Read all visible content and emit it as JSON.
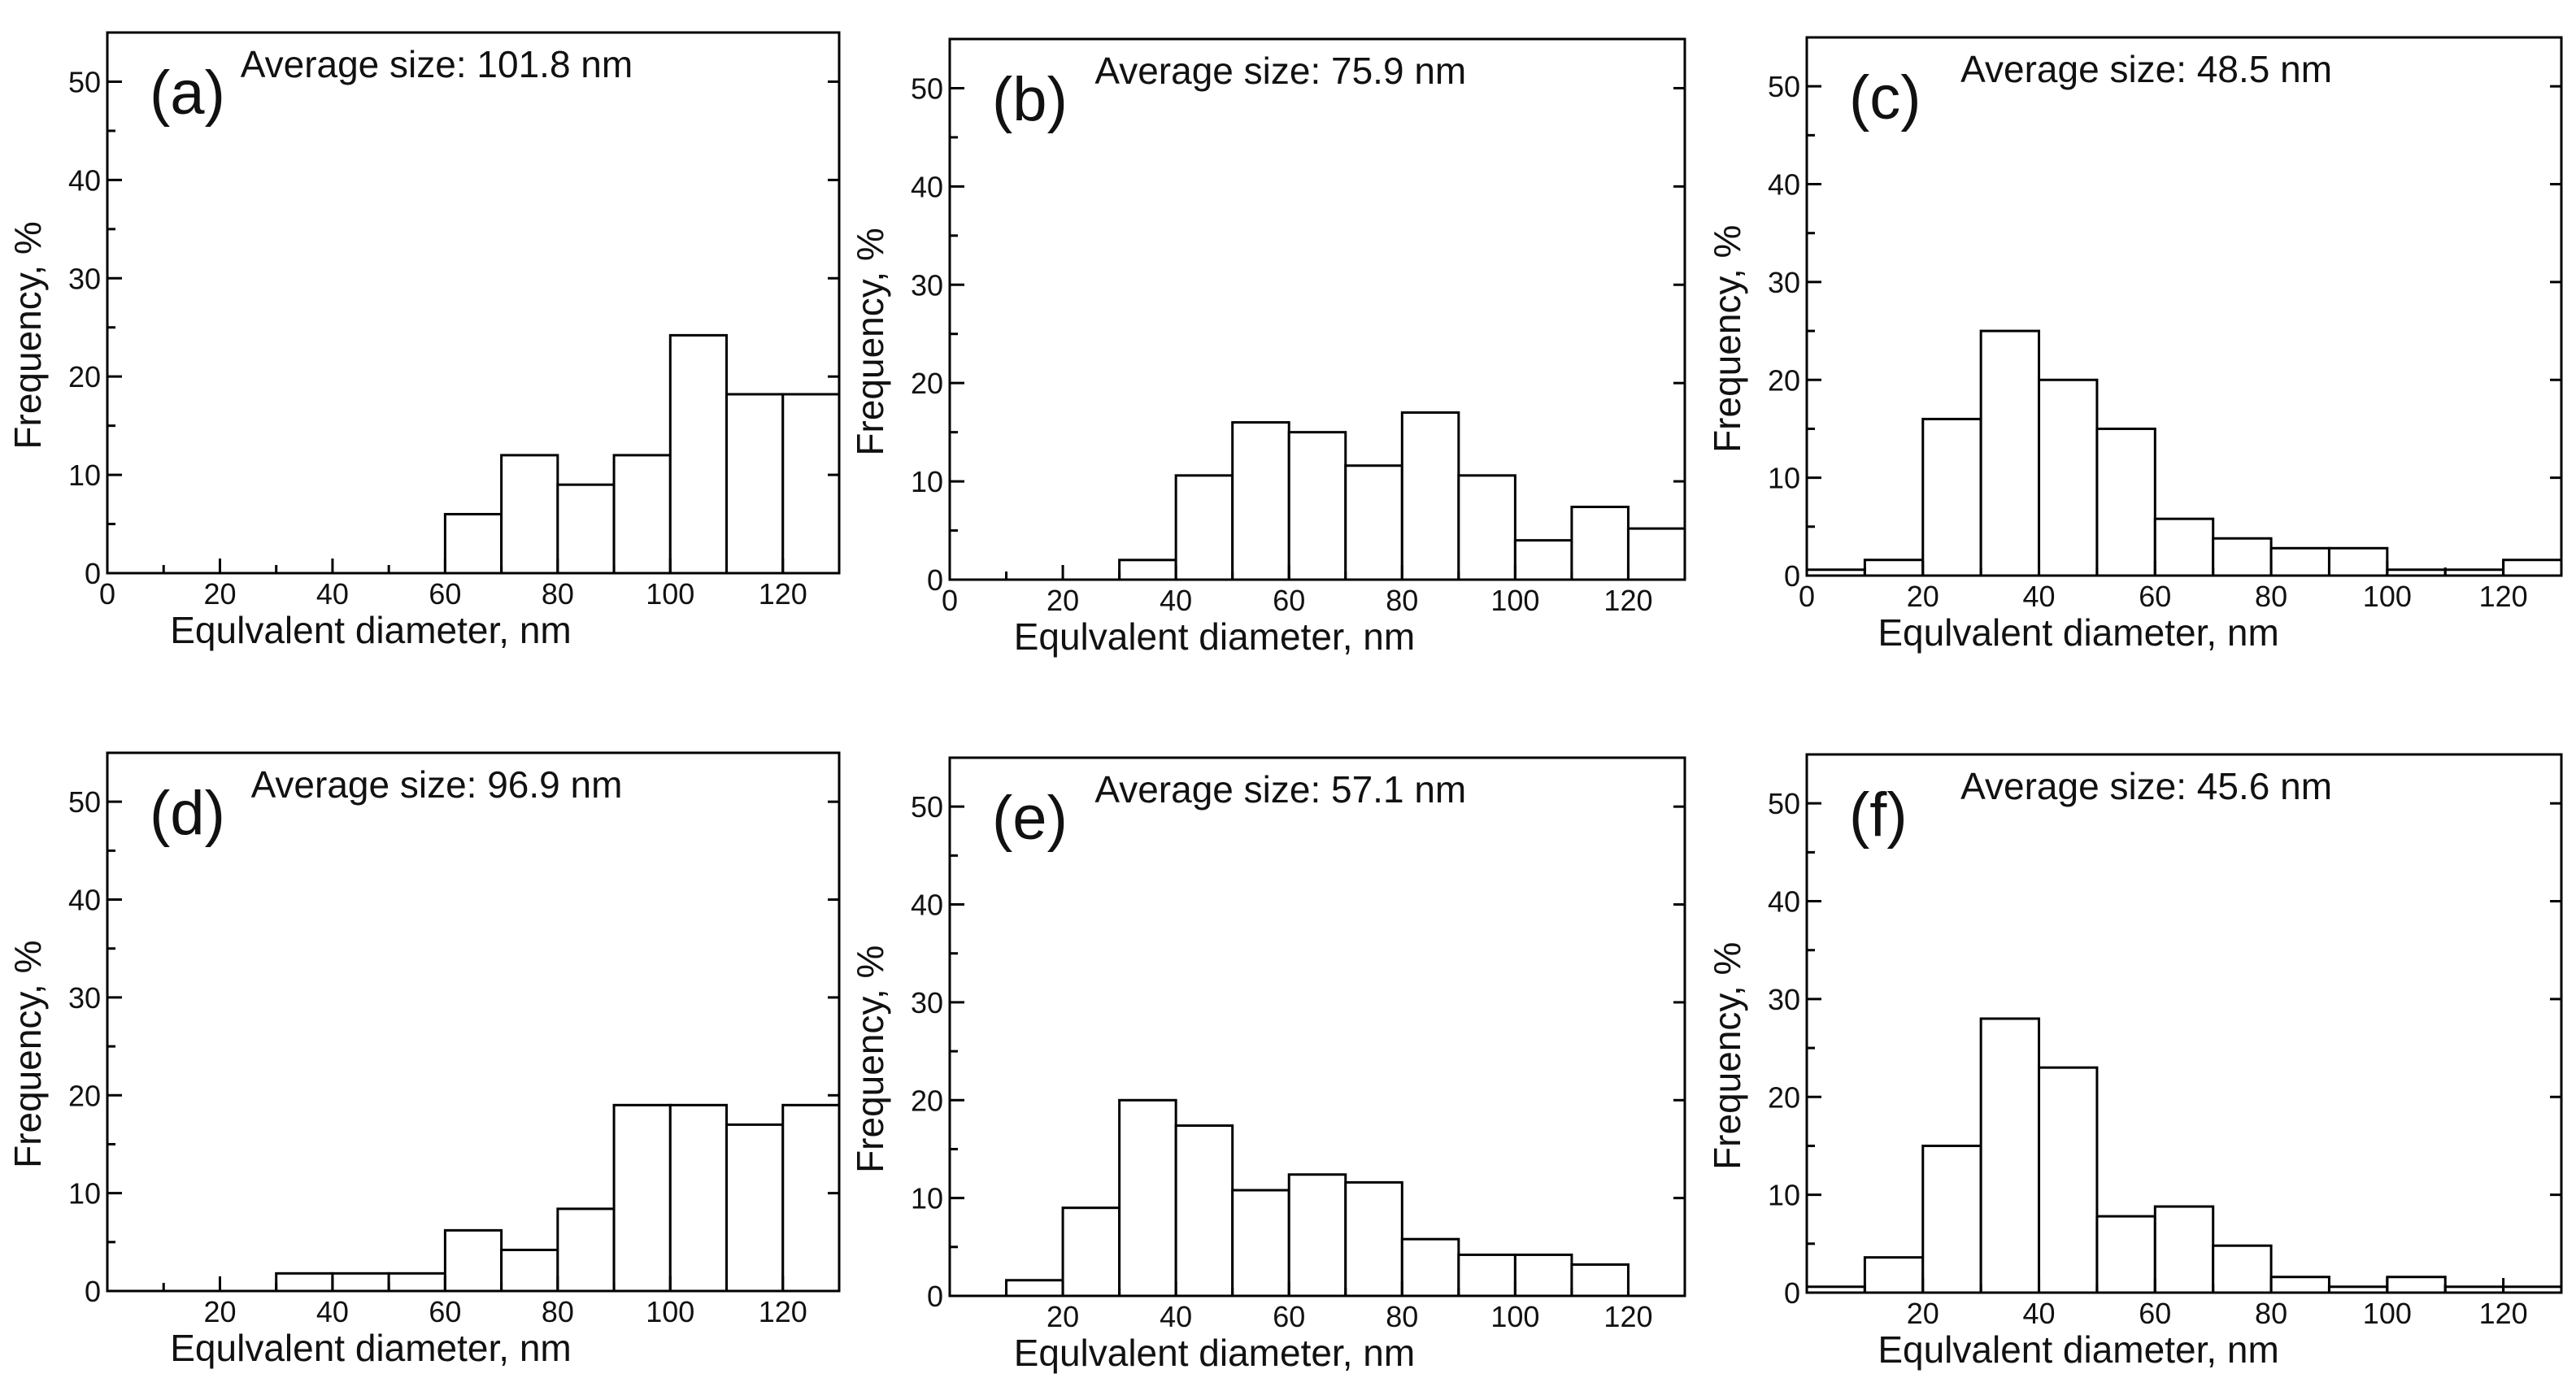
{
  "figure": {
    "xlabel": "Equlvalent diameter, nm",
    "ylabel": "Frequency, %"
  },
  "chart_data": [
    {
      "type": "bar",
      "panel": "(a)",
      "title": "Average size: 101.8 nm",
      "xlabel": "Equlvalent diameter, nm",
      "ylabel": "Frequency, %",
      "xlim": [
        0,
        130
      ],
      "ylim": [
        0,
        55
      ],
      "xticks": [
        0,
        20,
        40,
        60,
        80,
        100,
        120
      ],
      "yticks": [
        0,
        10,
        20,
        30,
        40,
        50
      ],
      "bin_width": 10,
      "bins": [
        {
          "start": 60,
          "value": 6
        },
        {
          "start": 70,
          "value": 12
        },
        {
          "start": 80,
          "value": 9
        },
        {
          "start": 90,
          "value": 12
        },
        {
          "start": 100,
          "value": 24.2
        },
        {
          "start": 110,
          "value": 18.2
        },
        {
          "start": 120,
          "value": 18.2
        }
      ]
    },
    {
      "type": "bar",
      "panel": "(b)",
      "title": "Average size: 75.9 nm",
      "xlabel": "Equlvalent diameter, nm",
      "ylabel": "Frequency, %",
      "xlim": [
        0,
        130
      ],
      "ylim": [
        0,
        55
      ],
      "xticks": [
        0,
        20,
        40,
        60,
        80,
        100,
        120
      ],
      "yticks": [
        0,
        10,
        20,
        30,
        40,
        50
      ],
      "bin_width": 10,
      "bins": [
        {
          "start": 30,
          "value": 2
        },
        {
          "start": 40,
          "value": 10.6
        },
        {
          "start": 50,
          "value": 16
        },
        {
          "start": 60,
          "value": 15
        },
        {
          "start": 70,
          "value": 11.6
        },
        {
          "start": 80,
          "value": 17
        },
        {
          "start": 90,
          "value": 10.6
        },
        {
          "start": 100,
          "value": 4
        },
        {
          "start": 110,
          "value": 7.4
        },
        {
          "start": 120,
          "value": 5.2
        }
      ]
    },
    {
      "type": "bar",
      "panel": "(c)",
      "title": "Average size: 48.5 nm",
      "xlabel": "Equlvalent diameter, nm",
      "ylabel": "Frequency, %",
      "xlim": [
        0,
        130
      ],
      "ylim": [
        0,
        55
      ],
      "xticks": [
        0,
        20,
        40,
        60,
        80,
        100,
        120
      ],
      "yticks": [
        0,
        10,
        20,
        30,
        40,
        50
      ],
      "bin_width": 10,
      "bins": [
        {
          "start": 0,
          "value": 0.6
        },
        {
          "start": 10,
          "value": 1.6
        },
        {
          "start": 20,
          "value": 16
        },
        {
          "start": 30,
          "value": 25
        },
        {
          "start": 40,
          "value": 20
        },
        {
          "start": 50,
          "value": 15
        },
        {
          "start": 60,
          "value": 5.8
        },
        {
          "start": 70,
          "value": 3.8
        },
        {
          "start": 80,
          "value": 2.8
        },
        {
          "start": 90,
          "value": 2.8
        },
        {
          "start": 100,
          "value": 0.6
        },
        {
          "start": 110,
          "value": 0.6
        },
        {
          "start": 120,
          "value": 1.6
        }
      ]
    },
    {
      "type": "bar",
      "panel": "(d)",
      "title": "Average size: 96.9 nm",
      "xlabel": "Equlvalent diameter, nm",
      "ylabel": "Frequency, %",
      "xlim": [
        0,
        130
      ],
      "ylim": [
        0,
        55
      ],
      "xticks": [
        20,
        40,
        60,
        80,
        100,
        120
      ],
      "yticks": [
        0,
        10,
        20,
        30,
        40,
        50
      ],
      "bin_width": 10,
      "bins": [
        {
          "start": 30,
          "value": 1.8
        },
        {
          "start": 40,
          "value": 1.8
        },
        {
          "start": 50,
          "value": 1.8
        },
        {
          "start": 60,
          "value": 6.2
        },
        {
          "start": 70,
          "value": 4.2
        },
        {
          "start": 80,
          "value": 8.4
        },
        {
          "start": 90,
          "value": 19
        },
        {
          "start": 100,
          "value": 19
        },
        {
          "start": 110,
          "value": 17
        },
        {
          "start": 120,
          "value": 19
        }
      ]
    },
    {
      "type": "bar",
      "panel": "(e)",
      "title": "Average size: 57.1 nm",
      "xlabel": "Equlvalent diameter, nm",
      "ylabel": "Frequency, %",
      "xlim": [
        0,
        130
      ],
      "ylim": [
        0,
        55
      ],
      "xticks": [
        20,
        40,
        60,
        80,
        100,
        120
      ],
      "yticks": [
        0,
        10,
        20,
        30,
        40,
        50
      ],
      "bin_width": 10,
      "bins": [
        {
          "start": 10,
          "value": 1.6
        },
        {
          "start": 20,
          "value": 9
        },
        {
          "start": 30,
          "value": 20
        },
        {
          "start": 40,
          "value": 17.4
        },
        {
          "start": 50,
          "value": 10.8
        },
        {
          "start": 60,
          "value": 12.4
        },
        {
          "start": 70,
          "value": 11.6
        },
        {
          "start": 80,
          "value": 5.8
        },
        {
          "start": 90,
          "value": 4.2
        },
        {
          "start": 100,
          "value": 4.2
        },
        {
          "start": 110,
          "value": 3.2
        }
      ]
    },
    {
      "type": "bar",
      "panel": "(f)",
      "title": "Average size: 45.6 nm",
      "xlabel": "Equlvalent diameter, nm",
      "ylabel": "Frequency, %",
      "xlim": [
        0,
        130
      ],
      "ylim": [
        0,
        55
      ],
      "xticks": [
        20,
        40,
        60,
        80,
        100,
        120
      ],
      "yticks": [
        0,
        10,
        20,
        30,
        40,
        50
      ],
      "bin_width": 10,
      "bins": [
        {
          "start": 0,
          "value": 0.6
        },
        {
          "start": 10,
          "value": 3.6
        },
        {
          "start": 20,
          "value": 15
        },
        {
          "start": 30,
          "value": 28
        },
        {
          "start": 40,
          "value": 23
        },
        {
          "start": 50,
          "value": 7.8
        },
        {
          "start": 60,
          "value": 8.8
        },
        {
          "start": 70,
          "value": 4.8
        },
        {
          "start": 80,
          "value": 1.6
        },
        {
          "start": 90,
          "value": 0.6
        },
        {
          "start": 100,
          "value": 1.6
        },
        {
          "start": 110,
          "value": 0.6
        },
        {
          "start": 120,
          "value": 0.6
        }
      ]
    }
  ]
}
